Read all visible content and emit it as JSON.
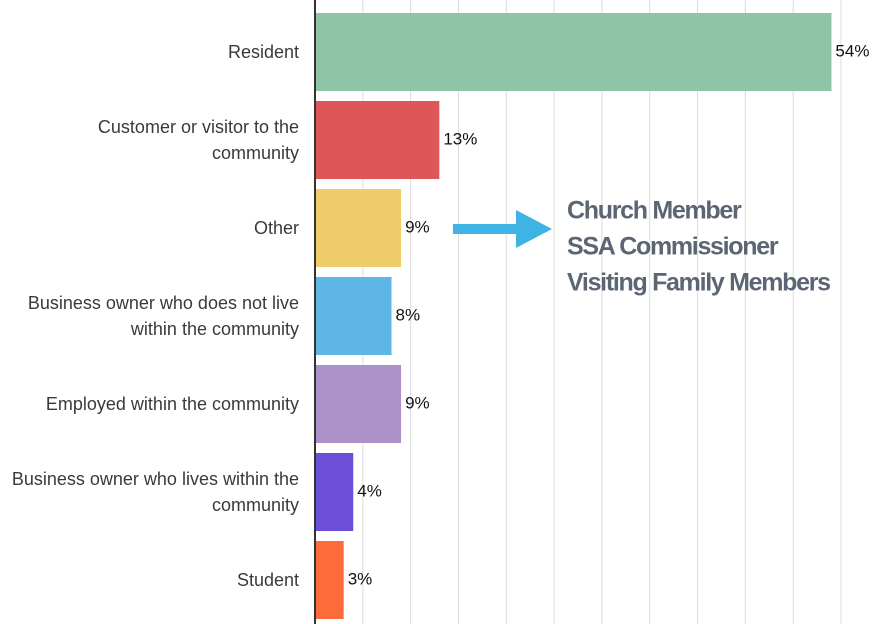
{
  "chart_data": {
    "type": "bar",
    "orientation": "horizontal",
    "categories": [
      "Resident",
      "Customer or visitor to the community",
      "Other",
      "Business owner who does not live within the community",
      "Employed within the community",
      "Business owner who lives within the community",
      "Student"
    ],
    "values": [
      54,
      13,
      9,
      8,
      9,
      4,
      3
    ],
    "value_labels": [
      "54%",
      "13%",
      "9%",
      "8%",
      "9%",
      "4%",
      "3%"
    ],
    "colors": [
      "#8fc4a6",
      "#de5657",
      "#efcb69",
      "#5fb6e6",
      "#ab91c8",
      "#6b4fd9",
      "#fd6b3a"
    ],
    "xlim": [
      0,
      55
    ],
    "xticks": [
      0,
      5,
      10,
      15,
      20,
      25,
      30,
      35,
      40,
      45,
      50,
      55
    ],
    "grid": true,
    "annotations": [
      "Church Member",
      "SSA Commissioner",
      "Visiting Family Members"
    ],
    "annotation_color": "#5b6573",
    "arrow_color": "#3fb3e3"
  }
}
